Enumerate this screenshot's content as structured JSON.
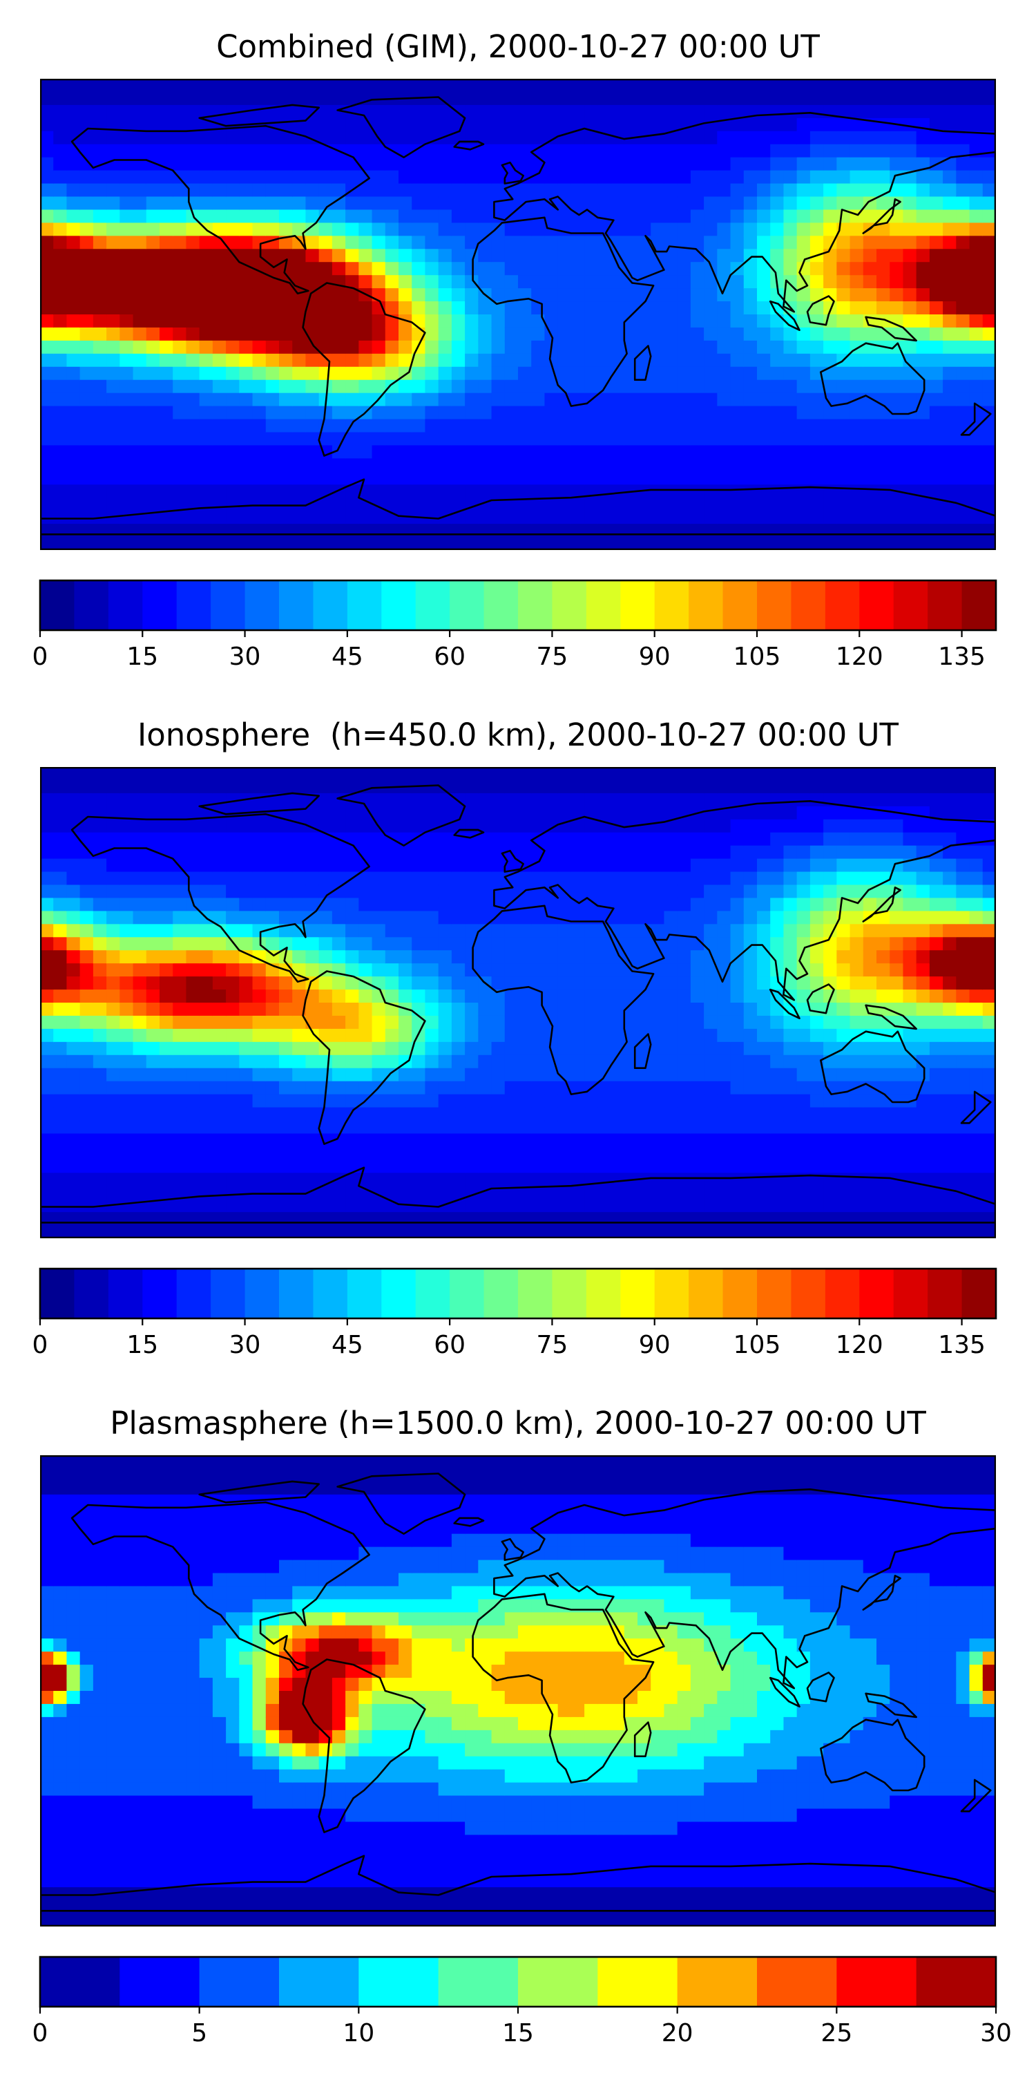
{
  "chart_data": [
    {
      "type": "heatmap",
      "title": "Combined (GIM), 2000-10-27 00:00 UT",
      "colorbar": {
        "min": 0,
        "max": 140,
        "levels": 28,
        "ticks": [
          0,
          15,
          30,
          45,
          60,
          75,
          90,
          105,
          120,
          135
        ]
      },
      "grid": false,
      "hotspots": [
        {
          "lon": -130,
          "lat": 10,
          "value": 130,
          "spread_lon": 38,
          "spread_lat": 14
        },
        {
          "lon": -95,
          "lat": 8,
          "value": 110,
          "spread_lon": 30,
          "spread_lat": 16
        },
        {
          "lon": 178,
          "lat": 15,
          "value": 125,
          "spread_lon": 18,
          "spread_lat": 13
        },
        {
          "lon": 130,
          "lat": 20,
          "value": 80,
          "spread_lon": 25,
          "spread_lat": 22
        },
        {
          "lon": -60,
          "lat": -10,
          "value": 75,
          "spread_lon": 25,
          "spread_lat": 14
        }
      ]
    },
    {
      "type": "heatmap",
      "title": "Ionosphere  (h=450.0 km), 2000-10-27 00:00 UT",
      "colorbar": {
        "min": 0,
        "max": 140,
        "levels": 28,
        "ticks": [
          0,
          15,
          30,
          45,
          60,
          75,
          90,
          105,
          120,
          135
        ]
      },
      "grid": false,
      "hotspots": [
        {
          "lon": -120,
          "lat": 5,
          "value": 110,
          "spread_lon": 34,
          "spread_lat": 14
        },
        {
          "lon": 175,
          "lat": 15,
          "value": 110,
          "spread_lon": 18,
          "spread_lat": 12
        },
        {
          "lon": 130,
          "lat": 20,
          "value": 70,
          "spread_lon": 25,
          "spread_lat": 22
        },
        {
          "lon": -60,
          "lat": -10,
          "value": 55,
          "spread_lon": 22,
          "spread_lat": 12
        }
      ]
    },
    {
      "type": "heatmap",
      "title": "Plasmasphere (h=1500.0 km), 2000-10-27 00:00 UT",
      "colorbar": {
        "min": 0,
        "max": 30,
        "levels": 12,
        "ticks": [
          0,
          5,
          10,
          15,
          20,
          25,
          30
        ]
      },
      "grid": false,
      "hotspots": [
        {
          "lon": -80,
          "lat": -10,
          "value": 28,
          "spread_lon": 12,
          "spread_lat": 10
        },
        {
          "lon": -175,
          "lat": 5,
          "value": 24,
          "spread_lon": 6,
          "spread_lat": 6
        },
        {
          "lon": 178,
          "lat": 5,
          "value": 21,
          "spread_lon": 5,
          "spread_lat": 6
        },
        {
          "lon": 20,
          "lat": 5,
          "value": 16,
          "spread_lon": 55,
          "spread_lat": 25
        },
        {
          "lon": -70,
          "lat": 15,
          "value": 20,
          "spread_lon": 20,
          "spread_lat": 10
        }
      ]
    }
  ]
}
